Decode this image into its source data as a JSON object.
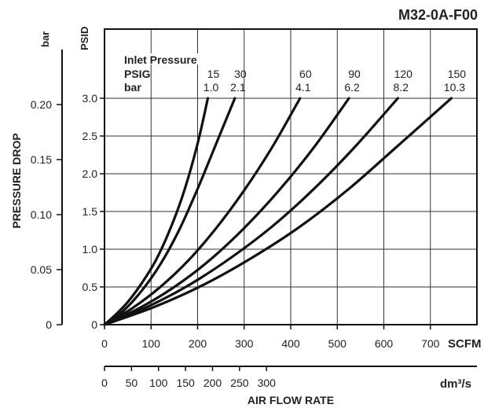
{
  "chart_data": {
    "type": "line",
    "title": "M32-0A-F00",
    "xlabel": "AIR FLOW RATE",
    "ylabel": "PRESSURE DROP",
    "x_units": {
      "primary": "SCFM",
      "secondary": "dm³/s"
    },
    "y_units": {
      "primary": "PSID",
      "secondary": "bar"
    },
    "xlim": [
      0,
      800
    ],
    "ylim": [
      0,
      3.3
    ],
    "x_ticks": [
      0,
      100,
      200,
      300,
      400,
      500,
      600,
      700
    ],
    "y_ticks": [
      0,
      0.5,
      1.0,
      1.5,
      2.0,
      2.5,
      3.0
    ],
    "y_tick_labels": [
      "0",
      "0.5",
      "1.0",
      "1.5",
      "2.0",
      "2.5",
      "3.0"
    ],
    "x2_ticks": [
      0,
      50,
      100,
      150,
      200,
      250,
      300
    ],
    "y2_ticks": [
      0,
      0.05,
      0.1,
      0.15,
      0.2
    ],
    "y2_tick_labels": [
      "0",
      "0.05",
      "0.10",
      "0.15",
      "0.20"
    ],
    "legend": {
      "title": "Inlet Pressure",
      "row1_label": "PSIG",
      "row2_label": "bar"
    },
    "grid": true,
    "series": [
      {
        "psig": "15",
        "bar": "1.0",
        "x": [
          0,
          25,
          50,
          80,
          110,
          140,
          170,
          200,
          222
        ],
        "y": [
          0,
          0.14,
          0.3,
          0.55,
          0.85,
          1.25,
          1.75,
          2.4,
          3.0
        ]
      },
      {
        "psig": "30",
        "bar": "2.1",
        "x": [
          0,
          40,
          80,
          120,
          160,
          200,
          240,
          280
        ],
        "y": [
          0,
          0.18,
          0.45,
          0.8,
          1.25,
          1.8,
          2.4,
          3.0
        ]
      },
      {
        "psig": "60",
        "bar": "4.1",
        "x": [
          0,
          60,
          120,
          180,
          240,
          300,
          360,
          420
        ],
        "y": [
          0,
          0.22,
          0.5,
          0.85,
          1.28,
          1.78,
          2.35,
          3.0
        ]
      },
      {
        "psig": "90",
        "bar": "6.2",
        "x": [
          0,
          75,
          150,
          225,
          300,
          375,
          450,
          525
        ],
        "y": [
          0,
          0.22,
          0.5,
          0.85,
          1.28,
          1.78,
          2.35,
          3.0
        ]
      },
      {
        "psig": "120",
        "bar": "8.2",
        "x": [
          0,
          90,
          180,
          270,
          360,
          450,
          540,
          630
        ],
        "y": [
          0,
          0.23,
          0.52,
          0.88,
          1.3,
          1.8,
          2.37,
          3.0
        ]
      },
      {
        "psig": "150",
        "bar": "10.3",
        "x": [
          0,
          105,
          210,
          315,
          420,
          525,
          630,
          745
        ],
        "y": [
          0,
          0.23,
          0.52,
          0.88,
          1.3,
          1.8,
          2.37,
          3.0
        ]
      }
    ]
  }
}
